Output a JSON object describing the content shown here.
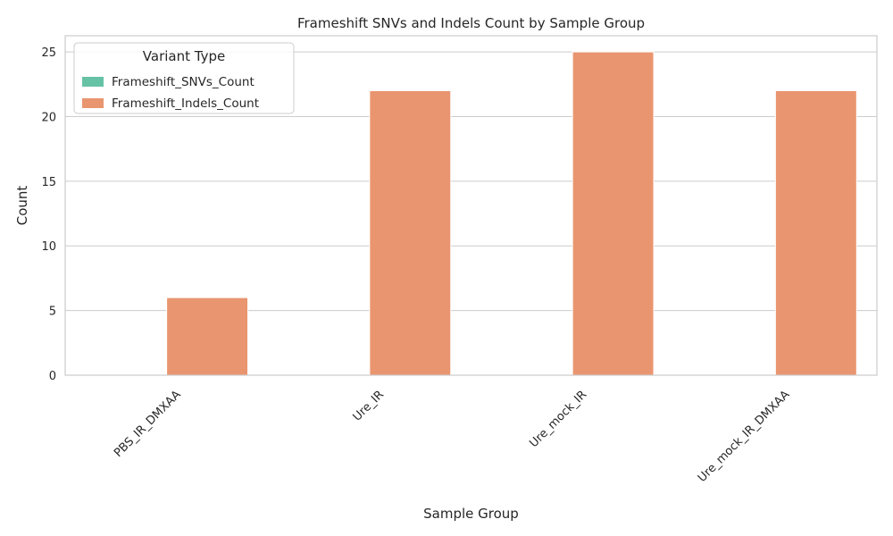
{
  "chart_data": {
    "type": "bar",
    "title": "Frameshift SNVs and Indels Count by Sample Group",
    "xlabel": "Sample Group",
    "ylabel": "Count",
    "categories": [
      "PBS_IR_DMXAA",
      "Ure_IR",
      "Ure_mock_IR",
      "Ure_mock_IR_DMXAA"
    ],
    "series": [
      {
        "name": "Frameshift_SNVs_Count",
        "values": [
          0,
          0,
          0,
          0
        ],
        "color": "#66c2a5"
      },
      {
        "name": "Frameshift_Indels_Count",
        "values": [
          6,
          22,
          25,
          22
        ],
        "color": "#e9956f"
      }
    ],
    "ylim": [
      0,
      26.25
    ],
    "yticks": [
      0,
      5,
      10,
      15,
      20,
      25
    ],
    "grid": true,
    "legend": {
      "title": "Variant Type",
      "placement": "top-left"
    }
  }
}
